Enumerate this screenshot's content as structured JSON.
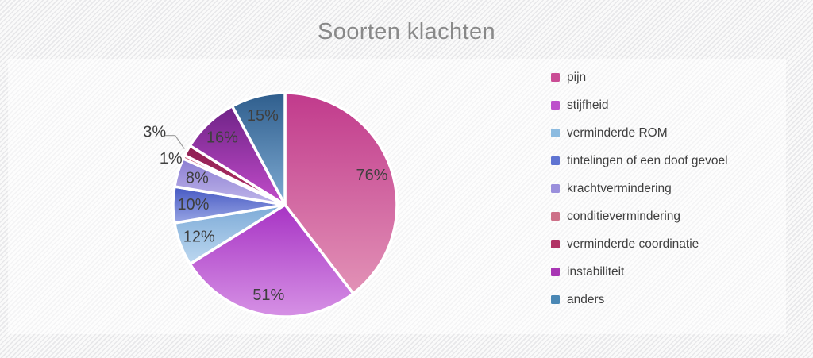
{
  "chart_data": {
    "type": "pie",
    "title": "Soorten klachten",
    "unit": "%",
    "legend_position": "right",
    "start_angle_deg": 0,
    "direction": "clockwise",
    "note": "slice angles are proportional to the shown percentages (multi-response survey, labels sum to 192%)",
    "series": [
      {
        "label": "pijn",
        "value": 76,
        "label_placement": "inside",
        "color_dark": "#c13a8c",
        "color_light": "#e292b6",
        "swatch": "#ca4d95"
      },
      {
        "label": "stijfheid",
        "value": 51,
        "label_placement": "inside",
        "color_dark": "#a733c4",
        "color_light": "#d691e5",
        "swatch": "#bd50cb"
      },
      {
        "label": "verminderde ROM",
        "value": 12,
        "label_placement": "inside",
        "color_dark": "#7caad7",
        "color_light": "#bdd8f0",
        "swatch": "#8cbbe0"
      },
      {
        "label": "tintelingen of een doof gevoel",
        "value": 10,
        "label_placement": "inside",
        "color_dark": "#4558c2",
        "color_light": "#98a5e4",
        "swatch": "#5f74d2"
      },
      {
        "label": "krachtvermindering",
        "value": 8,
        "label_placement": "inside",
        "color_dark": "#8a7dd2",
        "color_light": "#c0b6ea",
        "swatch": "#9a8fdc"
      },
      {
        "label": "conditievermindering",
        "value": 1,
        "label_placement": "outside",
        "color_dark": "#c75873",
        "color_light": "#d9798f",
        "swatch": "#cd7088"
      },
      {
        "label": "verminderde coordinatie",
        "value": 3,
        "label_placement": "outside-leader",
        "color_dark": "#8e1f52",
        "color_light": "#b53269",
        "swatch": "#b13365"
      },
      {
        "label": "instabiliteit",
        "value": 16,
        "label_placement": "inside",
        "color_dark": "#6f2387",
        "color_light": "#c24cca",
        "swatch": "#a836b4"
      },
      {
        "label": "anders",
        "value": 15,
        "label_placement": "inside",
        "color_dark": "#2f5e8d",
        "color_light": "#7fabd3",
        "swatch": "#4a87b4"
      }
    ]
  },
  "styles": {
    "title_color": "#898989",
    "label_color": "#3f3f3f",
    "legend_text_color": "#3f3f3f",
    "leader_line_color": "#9b9b9b",
    "slice_border_color": "#ffffff"
  }
}
